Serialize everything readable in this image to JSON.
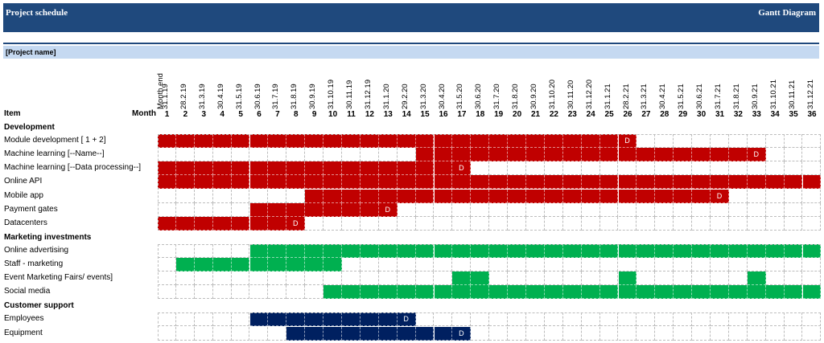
{
  "header": {
    "title": "Project schedule",
    "right_title": "Gantt  Diagram",
    "project_name": "[Project name]"
  },
  "columns": {
    "item_label": "Item",
    "month_label": "Month",
    "month_end_label": "Month end",
    "dates": [
      "31.1.19",
      "28.2.19",
      "31.3.19",
      "30.4.19",
      "31.5.19",
      "30.6.19",
      "31.7.19",
      "31.8.19",
      "30.9.19",
      "31.10.19",
      "30.11.19",
      "31.12.19",
      "31.1.20",
      "29.2.20",
      "31.3.20",
      "30.4.20",
      "31.5.20",
      "30.6.20",
      "31.7.20",
      "31.8.20",
      "30.9.20",
      "31.10.20",
      "30.11.20",
      "31.12.20",
      "31.1.21",
      "28.2.21",
      "31.3.21",
      "30.4.21",
      "31.5.21",
      "30.6.21",
      "31.7.21",
      "31.8.21",
      "30.9.21",
      "31.10.21",
      "30.11.21",
      "31.12.21"
    ],
    "months": [
      "1",
      "2",
      "3",
      "4",
      "5",
      "6",
      "7",
      "8",
      "9",
      "10",
      "11",
      "12",
      "13",
      "14",
      "15",
      "16",
      "17",
      "18",
      "19",
      "20",
      "21",
      "22",
      "23",
      "24",
      "25",
      "26",
      "27",
      "28",
      "29",
      "30",
      "31",
      "32",
      "33",
      "34",
      "35",
      "36"
    ]
  },
  "colors": {
    "banner": "#1f497d",
    "band": "#c5d9f1",
    "development": "#c00000",
    "marketing": "#00b050",
    "support": "#002060"
  },
  "milestone_mark": "D",
  "sections": [
    {
      "title": "Development",
      "color_key": "development",
      "rows": [
        {
          "label": "Module development [ 1 + 2]",
          "start": 1,
          "end": 26,
          "milestone": 26,
          "extra": []
        },
        {
          "label": "Machine learning [--Name--]",
          "start": 15,
          "end": 33,
          "milestone": 33,
          "extra": []
        },
        {
          "label": "Machine learning [--Data processing--]",
          "start": 1,
          "end": 17,
          "milestone": 17,
          "extra": []
        },
        {
          "label": "Online API",
          "start": 1,
          "end": 36,
          "milestone": 0,
          "extra": []
        },
        {
          "label": "Mobile app",
          "start": 9,
          "end": 31,
          "milestone": 31,
          "extra": []
        },
        {
          "label": "Payment gates",
          "start": 6,
          "end": 13,
          "milestone": 13,
          "extra": []
        },
        {
          "label": "Datacenters",
          "start": 1,
          "end": 8,
          "milestone": 8,
          "extra": []
        }
      ]
    },
    {
      "title": "Marketing investments",
      "color_key": "marketing",
      "rows": [
        {
          "label": "Online advertising",
          "start": 6,
          "end": 36,
          "milestone": 0,
          "extra": []
        },
        {
          "label": "Staff - marketing",
          "start": 2,
          "end": 10,
          "milestone": 0,
          "extra": []
        },
        {
          "label": "Event Marketing Fairs/ events]",
          "start": 0,
          "end": 0,
          "milestone": 0,
          "extra": [
            17,
            18,
            26,
            33
          ]
        },
        {
          "label": "Social media",
          "start": 10,
          "end": 36,
          "milestone": 0,
          "extra": []
        }
      ]
    },
    {
      "title": "Customer support",
      "color_key": "support",
      "rows": [
        {
          "label": "Employees",
          "start": 6,
          "end": 14,
          "milestone": 14,
          "extra": []
        },
        {
          "label": "Equipment",
          "start": 8,
          "end": 17,
          "milestone": 17,
          "extra": []
        }
      ]
    }
  ]
}
